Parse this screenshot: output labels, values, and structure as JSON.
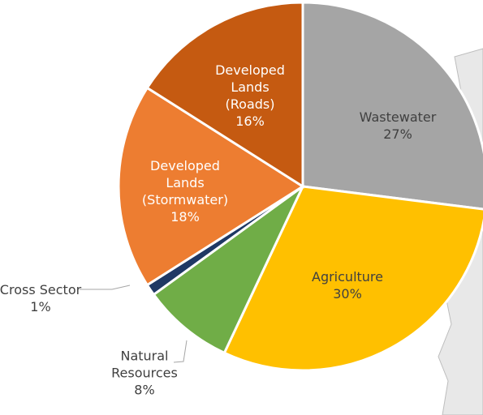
{
  "chart_data": {
    "type": "pie",
    "categories": [
      "Wastewater",
      "Agriculture",
      "Natural\nResources",
      "Cross Sector",
      "Developed\nLands\n(Stormwater)",
      "Developed\nLands\n(Roads)"
    ],
    "values": [
      27,
      30,
      8,
      1,
      18,
      16
    ],
    "value_labels": [
      "27%",
      "30%",
      "8%",
      "1%",
      "18%",
      "16%"
    ],
    "colors": [
      "#a5a5a5",
      "#ffc000",
      "#70ad47",
      "#1f3864",
      "#ed7d31",
      "#c55a11"
    ]
  }
}
